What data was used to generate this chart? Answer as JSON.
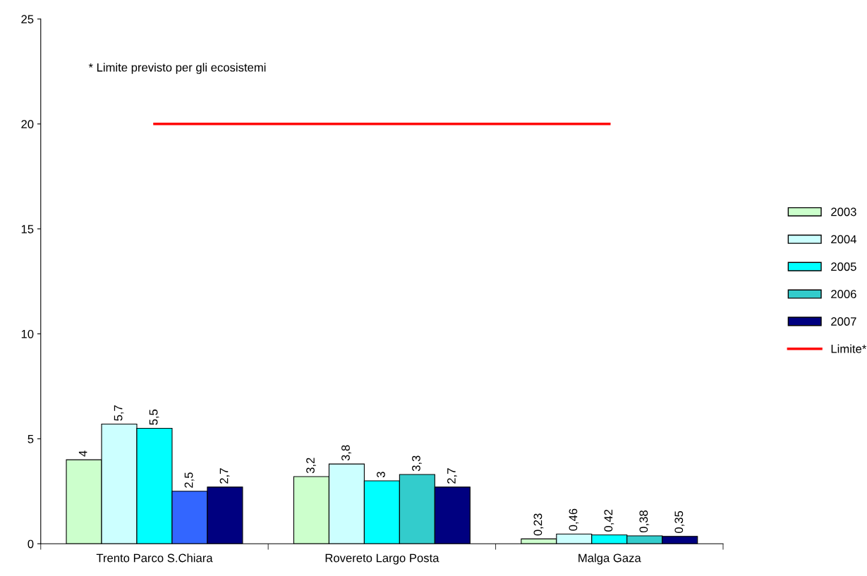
{
  "chart_data": {
    "type": "bar",
    "categories": [
      "Trento Parco S.Chiara",
      "Rovereto Largo Posta",
      "Malga Gaza"
    ],
    "series": [
      {
        "name": "2003",
        "color": "#ccffcc",
        "values": [
          4,
          3.2,
          0.23
        ],
        "value_labels": [
          "4",
          "3,2",
          "0,23"
        ]
      },
      {
        "name": "2004",
        "color": "#ccffff",
        "values": [
          5.7,
          3.8,
          0.46
        ],
        "value_labels": [
          "5,7",
          "3,8",
          "0,46"
        ]
      },
      {
        "name": "2005",
        "color": "#00ffff",
        "values": [
          5.5,
          3,
          0.42
        ],
        "value_labels": [
          "5,5",
          "3",
          "0,42"
        ]
      },
      {
        "name": "2006",
        "color": "#33cccc",
        "colors": [
          "#3366ff",
          "#33cccc",
          "#33cccc"
        ],
        "values": [
          2.5,
          3.3,
          0.38
        ],
        "value_labels": [
          "2,5",
          "3,3",
          "0,38"
        ]
      },
      {
        "name": "2007",
        "color": "#000080",
        "values": [
          2.7,
          2.7,
          0.35
        ],
        "value_labels": [
          "2,7",
          "2,7",
          "0,35"
        ]
      },
      {
        "name": "Limite*",
        "type": "line",
        "color": "#ff0000",
        "values": [
          20,
          20,
          20
        ]
      }
    ],
    "annotations": [
      "* Limite previsto per gli ecosistemi"
    ],
    "ylim": [
      0,
      25
    ],
    "yticks": [
      0,
      5,
      10,
      15,
      20,
      25
    ],
    "grid": false,
    "legend": "right"
  }
}
